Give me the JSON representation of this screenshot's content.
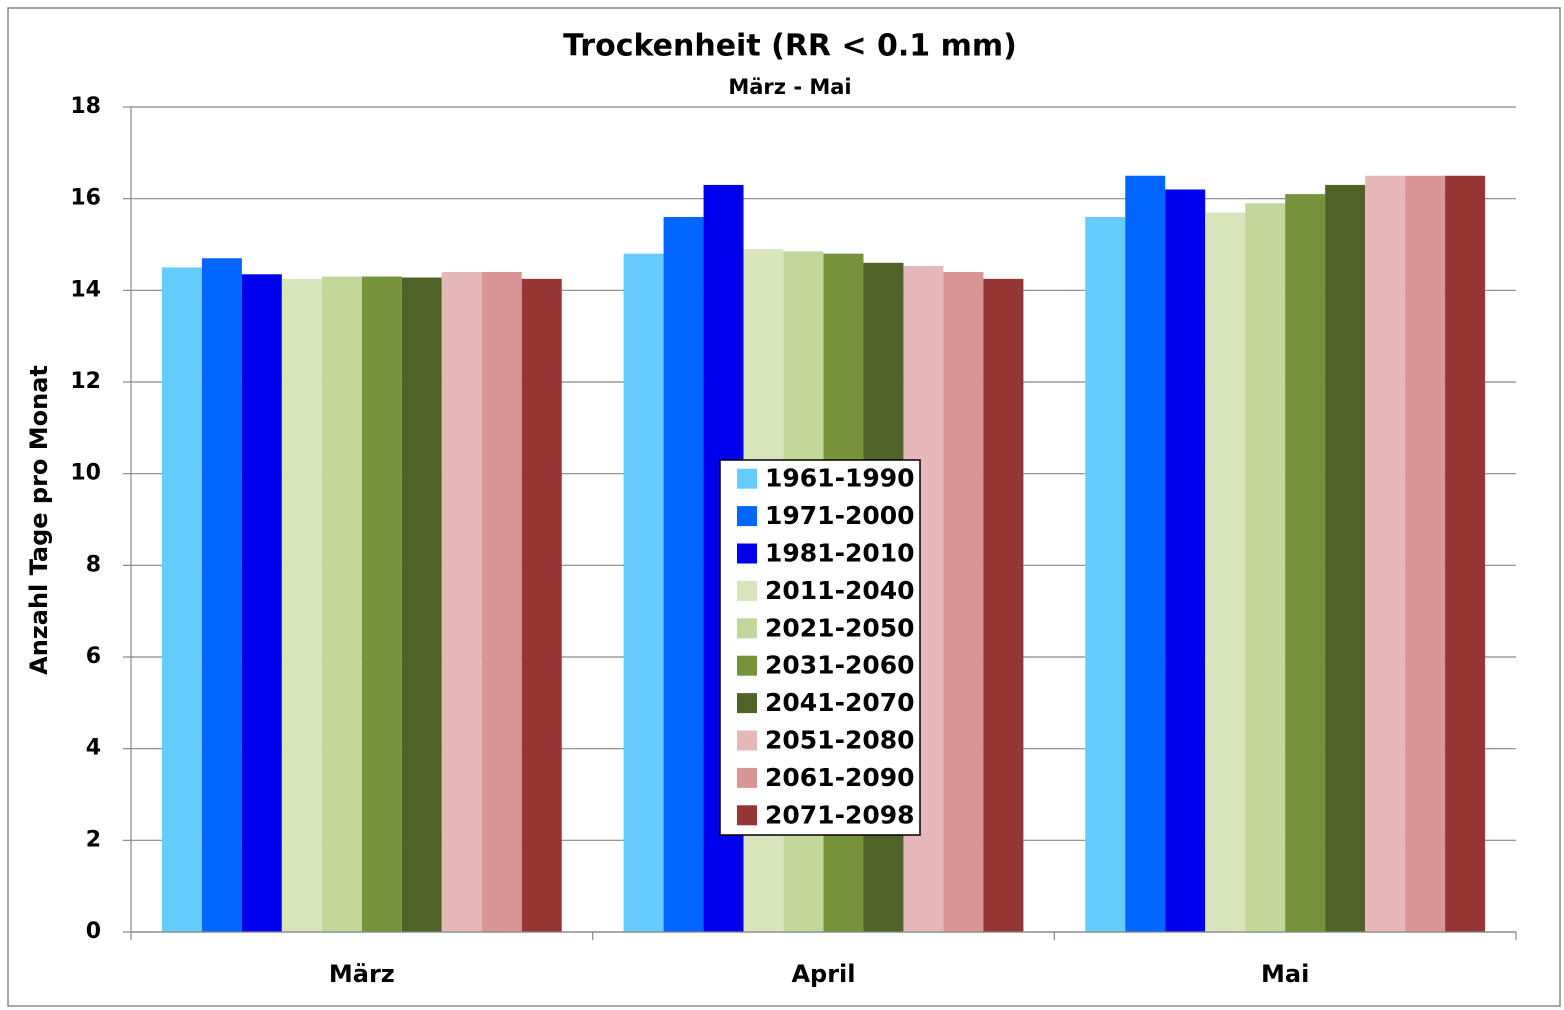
{
  "chart_data": {
    "type": "bar",
    "title": "Trockenheit (RR < 0.1 mm)",
    "subtitle": "März - Mai",
    "y_label": "Anzahl Tage pro Monat",
    "categories": [
      "März",
      "April",
      "Mai"
    ],
    "series": [
      {
        "name": "1961-1990",
        "color": "#66ccff",
        "values": [
          14.5,
          14.8,
          15.6
        ]
      },
      {
        "name": "1971-2000",
        "color": "#0066ff",
        "values": [
          14.7,
          15.6,
          16.5
        ]
      },
      {
        "name": "1981-2010",
        "color": "#0000ee",
        "values": [
          14.35,
          16.3,
          16.2
        ]
      },
      {
        "name": "2011-2040",
        "color": "#d8e4bc",
        "values": [
          14.25,
          14.9,
          15.7
        ]
      },
      {
        "name": "2021-2050",
        "color": "#c4d79b",
        "values": [
          14.3,
          14.85,
          15.9
        ]
      },
      {
        "name": "2031-2060",
        "color": "#76933c",
        "values": [
          14.3,
          14.8,
          16.1
        ]
      },
      {
        "name": "2041-2070",
        "color": "#4f6228",
        "values": [
          14.28,
          14.6,
          16.3
        ]
      },
      {
        "name": "2051-2080",
        "color": "#e6b8b7",
        "values": [
          14.4,
          14.53,
          16.5
        ]
      },
      {
        "name": "2061-2090",
        "color": "#da9694",
        "values": [
          14.4,
          14.4,
          16.5
        ]
      },
      {
        "name": "2071-2098",
        "color": "#963634",
        "values": [
          14.25,
          14.25,
          16.5
        ]
      }
    ],
    "ylim": [
      0,
      18
    ],
    "yticks": [
      0,
      2,
      4,
      6,
      8,
      10,
      12,
      14,
      16,
      18
    ],
    "grid": true,
    "legend": "center"
  }
}
